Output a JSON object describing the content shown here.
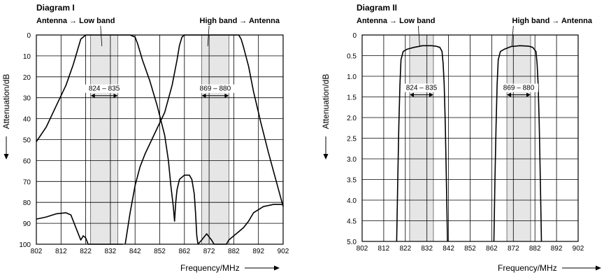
{
  "chart_data": [
    {
      "type": "line",
      "title": "Diagram I",
      "xlabel": "Frequency/MHz",
      "ylabel": "Attenuation/dB",
      "x_ticks": [
        802,
        812,
        822,
        832,
        842,
        852,
        862,
        872,
        882,
        892,
        902
      ],
      "xlim": [
        802,
        902
      ],
      "y_ticks": [
        0,
        10,
        20,
        30,
        40,
        50,
        60,
        70,
        80,
        90,
        100
      ],
      "ylim": [
        0,
        100
      ],
      "y_inverted": true,
      "grid": true,
      "bands": [
        {
          "label": "824 – 835",
          "from": 824,
          "to": 835,
          "y": 29
        },
        {
          "label": "869 – 880",
          "from": 869,
          "to": 880,
          "y": 29
        }
      ],
      "series": [
        {
          "name": "Antenna → Low band",
          "points": [
            [
              802,
              51
            ],
            [
              806,
              44
            ],
            [
              810,
              34
            ],
            [
              814,
              24
            ],
            [
              817,
              14
            ],
            [
              819,
              6
            ],
            [
              820,
              2
            ],
            [
              822,
              0
            ],
            [
              840,
              0
            ],
            [
              842,
              1
            ],
            [
              843,
              4
            ],
            [
              845,
              12
            ],
            [
              848,
              22
            ],
            [
              851,
              34
            ],
            [
              854,
              48
            ],
            [
              855.5,
              60
            ],
            [
              856.5,
              72
            ],
            [
              857.5,
              82
            ],
            [
              858,
              89
            ],
            [
              858.5,
              80
            ],
            [
              859,
              74
            ],
            [
              860,
              69
            ],
            [
              862,
              67
            ],
            [
              864,
              67
            ],
            [
              865,
              69
            ],
            [
              866,
              76
            ],
            [
              866.5,
              85
            ],
            [
              867,
              96
            ],
            [
              867.5,
              100
            ]
          ]
        },
        {
          "name": "",
          "points": [
            [
              802,
              88
            ],
            [
              806,
              87
            ],
            [
              810,
              85.5
            ],
            [
              814,
              85
            ],
            [
              816,
              86
            ],
            [
              817,
              89
            ],
            [
              819,
              95
            ],
            [
              820,
              98
            ],
            [
              821,
              96
            ],
            [
              822,
              97
            ],
            [
              823,
              100
            ],
            [
              836,
              100
            ],
            [
              837,
              100
            ]
          ]
        },
        {
          "name": "High band → Antenna",
          "points": [
            [
              838,
              100
            ],
            [
              840,
              85
            ],
            [
              842,
              72
            ],
            [
              844,
              63
            ],
            [
              846,
              57
            ],
            [
              850,
              47
            ],
            [
              854,
              37
            ],
            [
              857,
              24
            ],
            [
              859,
              12
            ],
            [
              860,
              5
            ],
            [
              861,
              1
            ],
            [
              862,
              0
            ],
            [
              884,
              0
            ],
            [
              885,
              2
            ],
            [
              886,
              6
            ],
            [
              888,
              15
            ],
            [
              890,
              27
            ],
            [
              893,
              42
            ],
            [
              896,
              56
            ],
            [
              899,
              69
            ],
            [
              902,
              82
            ]
          ]
        },
        {
          "name": "",
          "points": [
            [
              867.5,
              100
            ],
            [
              869,
              98
            ],
            [
              871,
              95
            ],
            [
              873,
              98
            ],
            [
              874,
              100
            ],
            [
              879,
              100
            ],
            [
              880,
              98
            ],
            [
              882,
              96
            ],
            [
              884,
              94
            ],
            [
              886,
              92
            ],
            [
              888,
              89
            ],
            [
              890,
              85
            ],
            [
              894,
              82
            ],
            [
              898,
              81
            ],
            [
              902,
              81
            ]
          ]
        }
      ]
    },
    {
      "type": "line",
      "title": "Diagram II",
      "xlabel": "Frequency/MHz",
      "ylabel": "Attenuation/dB",
      "x_ticks": [
        802,
        812,
        822,
        832,
        842,
        852,
        862,
        872,
        882,
        892,
        902
      ],
      "xlim": [
        802,
        902
      ],
      "y_ticks": [
        0,
        0.5,
        1.0,
        1.5,
        2.0,
        2.5,
        3.0,
        3.5,
        4.0,
        4.5,
        5.0
      ],
      "y_tick_labels": [
        "0",
        "0.5",
        "1.0",
        "1.5",
        "2.0",
        "2.5",
        "3.0",
        "3.5",
        "4.0",
        "4.5",
        "5.0"
      ],
      "ylim": [
        0,
        5
      ],
      "y_inverted": true,
      "grid": true,
      "bands": [
        {
          "label": "824 – 835",
          "from": 824,
          "to": 835,
          "y": 1.45
        },
        {
          "label": "869 – 880",
          "from": 869,
          "to": 880,
          "y": 1.45
        }
      ],
      "series": [
        {
          "name": "Antenna → Low band",
          "points": [
            [
              818,
              5
            ],
            [
              818.5,
              3.5
            ],
            [
              819,
              2.2
            ],
            [
              819.5,
              1.2
            ],
            [
              820,
              0.6
            ],
            [
              821,
              0.4
            ],
            [
              823,
              0.34
            ],
            [
              826,
              0.3
            ],
            [
              830,
              0.26
            ],
            [
              834,
              0.26
            ],
            [
              836,
              0.27
            ],
            [
              838,
              0.3
            ],
            [
              839,
              0.4
            ],
            [
              839.5,
              0.7
            ],
            [
              840,
              1.2
            ],
            [
              840.5,
              2.2
            ],
            [
              841,
              3.5
            ],
            [
              841.5,
              5
            ]
          ]
        },
        {
          "name": "High band → Antenna",
          "points": [
            [
              863,
              5
            ],
            [
              863.5,
              3.5
            ],
            [
              864,
              2.2
            ],
            [
              864.5,
              1.2
            ],
            [
              865,
              0.6
            ],
            [
              866,
              0.4
            ],
            [
              868,
              0.34
            ],
            [
              871,
              0.28
            ],
            [
              875,
              0.26
            ],
            [
              879,
              0.27
            ],
            [
              881,
              0.3
            ],
            [
              882.5,
              0.4
            ],
            [
              883,
              0.7
            ],
            [
              883.5,
              1.2
            ],
            [
              884,
              2.2
            ],
            [
              884.5,
              3.5
            ],
            [
              885,
              5
            ]
          ]
        }
      ]
    }
  ]
}
